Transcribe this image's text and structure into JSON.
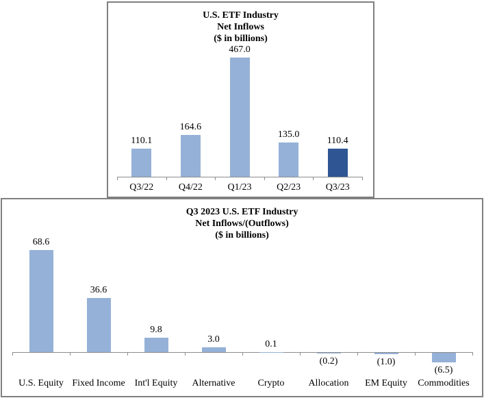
{
  "colors": {
    "bar_light_blue": "#95B1D7",
    "bar_dark_blue": "#2F5693",
    "axis_gray": "#8c8c8c",
    "frame_gray": "#7f7f7f",
    "text": "#000000"
  },
  "chart_data": [
    {
      "type": "bar",
      "title": "U.S. ETF Industry Net Inflows ($ in billions)",
      "title_lines": [
        "U.S. ETF Industry",
        "Net Inflows",
        "($ in billions)"
      ],
      "categories": [
        "Q3/22",
        "Q4/22",
        "Q1/23",
        "Q2/23",
        "Q3/23"
      ],
      "values": [
        110.1,
        164.6,
        467.0,
        135.0,
        110.4
      ],
      "labels": [
        "110.1",
        "164.6",
        "467.0",
        "135.0",
        "110.4"
      ],
      "bar_colors": [
        "#95B1D7",
        "#95B1D7",
        "#95B1D7",
        "#95B1D7",
        "#2F5693"
      ],
      "highlight_index": 4,
      "xlabel": "",
      "ylabel": "",
      "ylim": [
        0,
        500
      ],
      "grid": false,
      "legend": "none",
      "data_labels": "outside-end"
    },
    {
      "type": "bar",
      "title": "Q3 2023 U.S. ETF Industry Net Inflows/(Outflows) ($ in billions)",
      "title_lines": [
        "Q3 2023 U.S. ETF Industry",
        "Net Inflows/(Outflows)",
        "($ in billions)"
      ],
      "categories": [
        "U.S. Equity",
        "Fixed Income",
        "Int'l Equity",
        "Alternative",
        "Crypto",
        "Allocation",
        "EM Equity",
        "Commodities"
      ],
      "values": [
        68.6,
        36.6,
        9.8,
        3.0,
        0.1,
        -0.2,
        -1.0,
        -6.5
      ],
      "labels": [
        "68.6",
        "36.6",
        "9.8",
        "3.0",
        "0.1",
        "(0.2)",
        "(1.0)",
        "(6.5)"
      ],
      "bar_colors": [
        "#95B1D7",
        "#95B1D7",
        "#95B1D7",
        "#95B1D7",
        "#95B1D7",
        "#95B1D7",
        "#95B1D7",
        "#95B1D7"
      ],
      "xlabel": "",
      "ylabel": "",
      "ylim": [
        -10,
        75
      ],
      "grid": false,
      "legend": "none",
      "data_labels": "outside-end",
      "negative_label_format": "parentheses"
    }
  ]
}
